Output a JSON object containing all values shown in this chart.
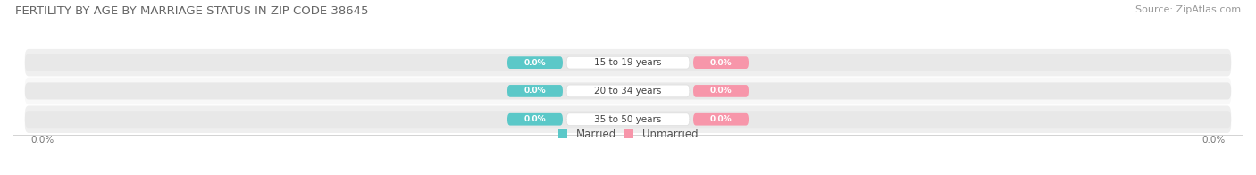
{
  "title": "FERTILITY BY AGE BY MARRIAGE STATUS IN ZIP CODE 38645",
  "source": "Source: ZipAtlas.com",
  "categories": [
    "15 to 19 years",
    "20 to 34 years",
    "35 to 50 years"
  ],
  "married_values": [
    0.0,
    0.0,
    0.0
  ],
  "unmarried_values": [
    0.0,
    0.0,
    0.0
  ],
  "married_color": "#5bc8c8",
  "unmarried_color": "#f796aa",
  "bar_bg_color": "#e8e8e8",
  "title_fontsize": 9.5,
  "source_fontsize": 8,
  "background_color": "#ffffff",
  "row_bg_even": "#efefef",
  "row_bg_odd": "#f8f8f8"
}
